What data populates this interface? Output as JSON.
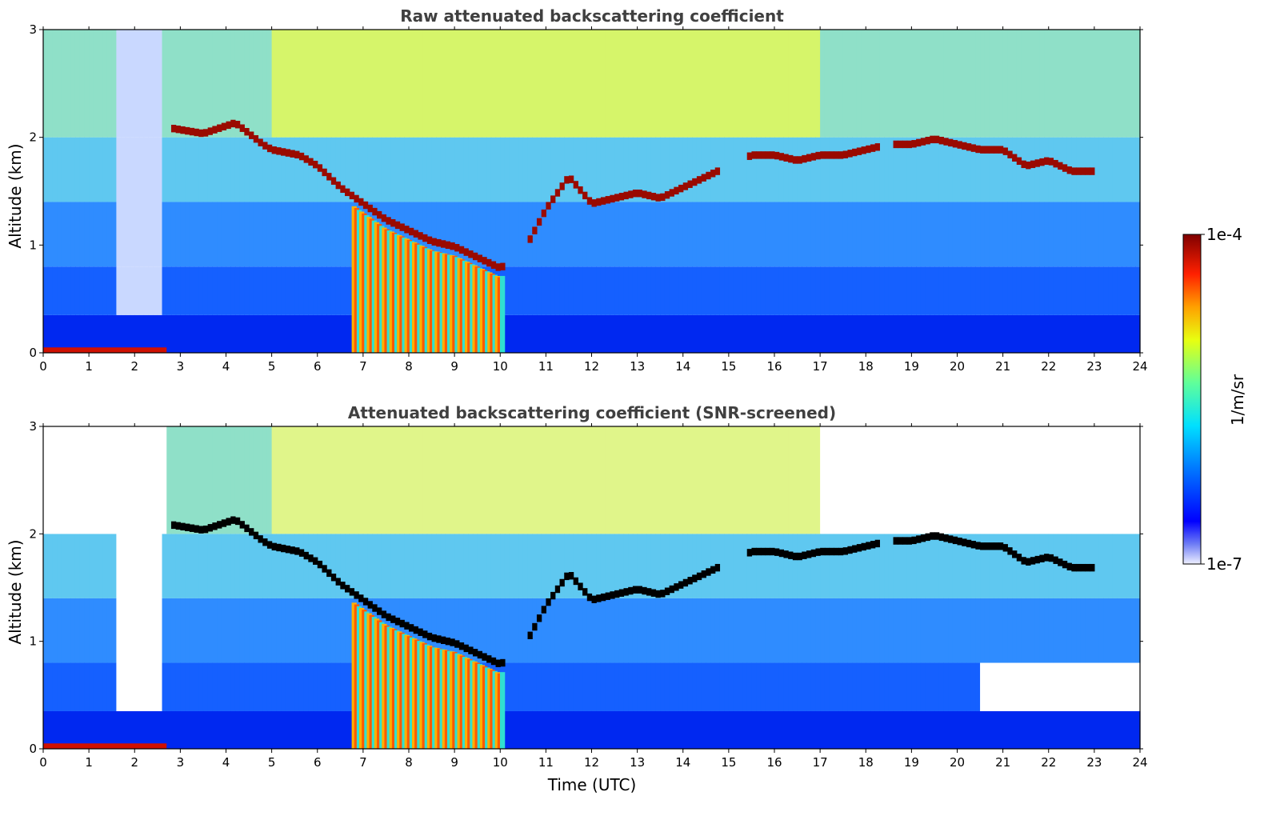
{
  "chart_data": [
    {
      "type": "heatmap",
      "title": "Raw attenuated backscattering coefficient",
      "xlabel": "",
      "ylabel": "Altitude (km)",
      "xlim": [
        0,
        24
      ],
      "ylim": [
        0,
        3
      ],
      "xticks": [
        "0",
        "1",
        "2",
        "3",
        "4",
        "5",
        "6",
        "7",
        "8",
        "9",
        "10",
        "11",
        "12",
        "13",
        "14",
        "15",
        "16",
        "17",
        "18",
        "19",
        "20",
        "21",
        "22",
        "23",
        "24"
      ],
      "yticks": [
        "0",
        "1",
        "2",
        "3"
      ],
      "cloud_layer": {
        "time": [
          2.8,
          3.5,
          4.2,
          4.8,
          5.0,
          5.6,
          6.0,
          6.5,
          7.0,
          7.5,
          8.0,
          8.5,
          9.0,
          9.5,
          10.0,
          10.5,
          11.0,
          11.5,
          12.0,
          12.5,
          13.0,
          13.5,
          14.0,
          14.5,
          15.5,
          16.0,
          16.5,
          17.0,
          17.5,
          18.0,
          18.5,
          19.0,
          19.5,
          20.0,
          20.5,
          21.0,
          21.5,
          22.0,
          22.5,
          23.0
        ],
        "altitude_km": [
          2.05,
          2.0,
          2.1,
          1.9,
          1.85,
          1.8,
          1.7,
          1.5,
          1.35,
          1.2,
          1.1,
          1.0,
          0.95,
          0.85,
          0.75,
          0.9,
          1.3,
          1.6,
          1.35,
          1.4,
          1.45,
          1.4,
          1.5,
          1.6,
          1.8,
          1.8,
          1.75,
          1.8,
          1.8,
          1.85,
          1.9,
          1.9,
          1.95,
          1.9,
          1.85,
          1.85,
          1.7,
          1.75,
          1.65,
          1.65
        ]
      }
    },
    {
      "type": "heatmap",
      "title": "Attenuated backscattering coefficient (SNR-screened)",
      "xlabel": "Time (UTC)",
      "ylabel": "Altitude (km)",
      "xlim": [
        0,
        24
      ],
      "ylim": [
        0,
        3
      ],
      "xticks": [
        "0",
        "1",
        "2",
        "3",
        "4",
        "5",
        "6",
        "7",
        "8",
        "9",
        "10",
        "11",
        "12",
        "13",
        "14",
        "15",
        "16",
        "17",
        "18",
        "19",
        "20",
        "21",
        "22",
        "23",
        "24"
      ],
      "yticks": [
        "0",
        "1",
        "2",
        "3"
      ]
    }
  ],
  "colorbar": {
    "label": "1/m/sr",
    "max_label": "1e-4",
    "min_label": "1e-7",
    "scale": "log",
    "colormap": "jet"
  }
}
